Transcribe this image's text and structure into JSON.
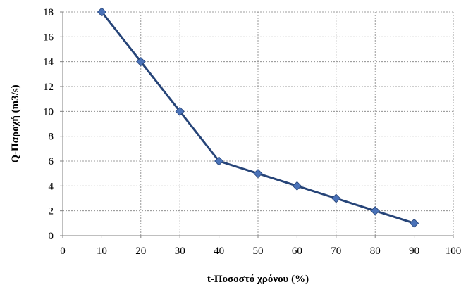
{
  "chart_data": {
    "type": "line",
    "title": "",
    "xlabel": "t-Ποσοστό χρόνου (%)",
    "ylabel": "Q-Παροχή (m3/s)",
    "xlim": [
      0,
      100
    ],
    "ylim": [
      0,
      18
    ],
    "x_ticks": [
      0,
      10,
      20,
      30,
      40,
      50,
      60,
      70,
      80,
      90,
      100
    ],
    "y_ticks": [
      0,
      2,
      4,
      6,
      8,
      10,
      12,
      14,
      16,
      18
    ],
    "grid": true,
    "legend": "none",
    "series": [
      {
        "x": [
          10,
          20,
          30,
          40,
          50,
          60,
          70,
          80,
          90
        ],
        "values": [
          18,
          14,
          10,
          6,
          5,
          4,
          3,
          2,
          1
        ],
        "line_color": "#264478",
        "marker_color": "#4a72b8",
        "marker": "diamond"
      }
    ]
  }
}
